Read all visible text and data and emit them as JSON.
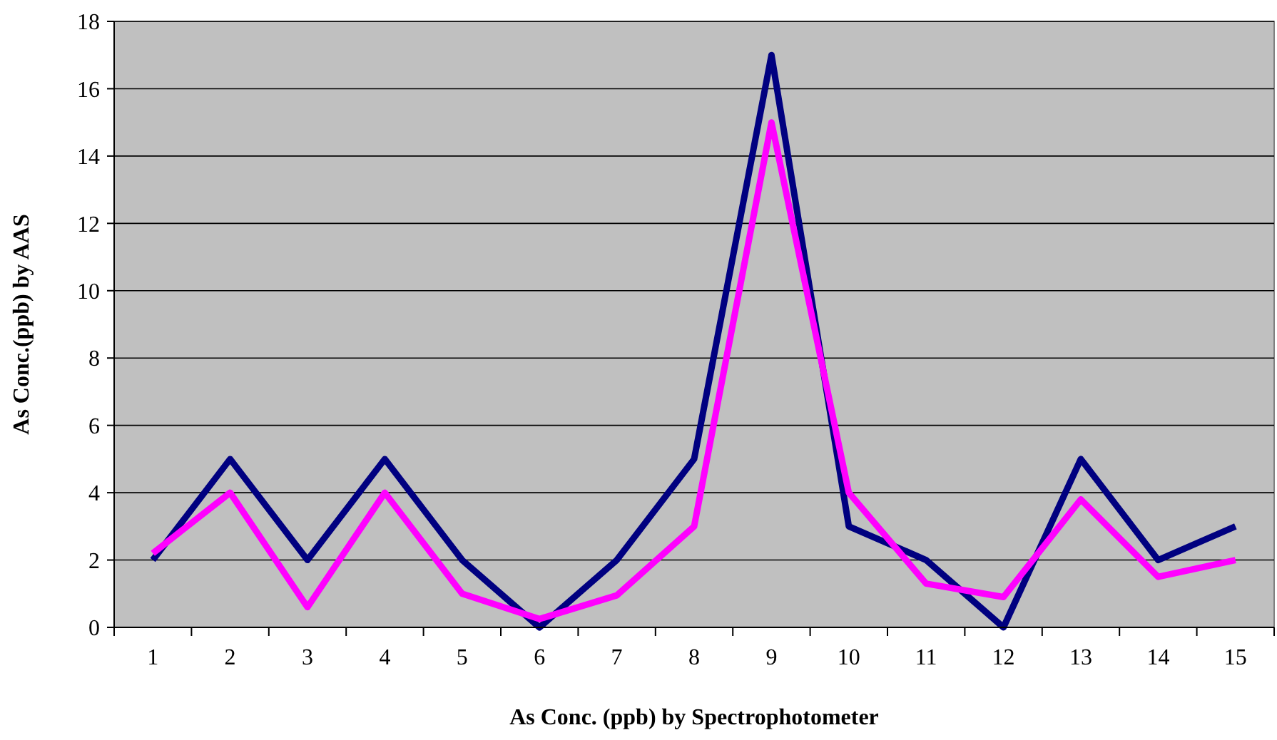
{
  "chart_data": {
    "type": "line",
    "xlabel": "As Conc. (ppb) by Spectrophotometer",
    "ylabel": "As Conc.(ppb) by AAS",
    "categories": [
      "1",
      "2",
      "3",
      "4",
      "5",
      "6",
      "7",
      "8",
      "9",
      "10",
      "11",
      "12",
      "13",
      "14",
      "15"
    ],
    "series": [
      {
        "color": "#000080",
        "values": [
          2,
          5,
          2,
          5,
          2,
          0,
          2,
          5,
          17,
          3,
          2,
          0,
          5,
          2,
          3
        ]
      },
      {
        "color": "#ff00ff",
        "values": [
          2.2,
          4,
          0.6,
          4,
          1,
          0.25,
          0.95,
          3,
          15,
          4,
          1.3,
          0.9,
          3.8,
          1.5,
          2
        ]
      }
    ],
    "ylim": [
      0,
      18
    ],
    "yticks": [
      0,
      2,
      4,
      6,
      8,
      10,
      12,
      14,
      16,
      18
    ],
    "grid": "y",
    "marker": "none",
    "line_style": "solid"
  }
}
